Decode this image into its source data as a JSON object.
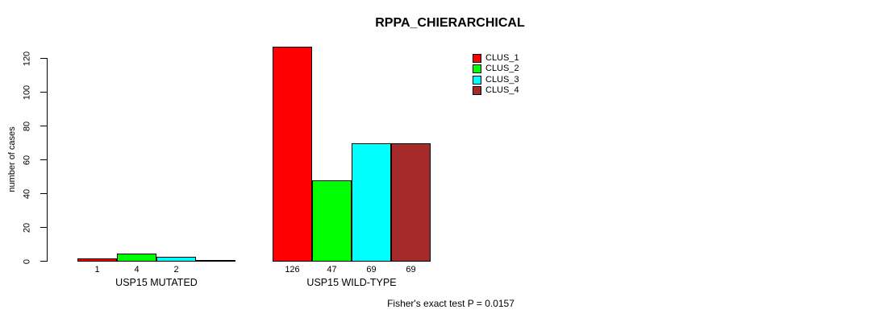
{
  "chart_data": {
    "type": "bar",
    "title": "RPPA_CHIERARCHICAL",
    "ylabel": "number of cases",
    "xlabel": "",
    "ylim": [
      0,
      120
    ],
    "yticks": [
      0,
      20,
      40,
      60,
      80,
      100,
      120
    ],
    "grid": false,
    "legend_position": "top-right",
    "categories": [
      "USP15 MUTATED",
      "USP15 WILD-TYPE"
    ],
    "series": [
      {
        "name": "CLUS_1",
        "color": "#FF0000",
        "values": [
          1,
          126
        ]
      },
      {
        "name": "CLUS_2",
        "color": "#00FF00",
        "values": [
          4,
          47
        ]
      },
      {
        "name": "CLUS_3",
        "color": "#00FFFF",
        "values": [
          2,
          69
        ]
      },
      {
        "name": "CLUS_4",
        "color": "#A52A2A",
        "values": [
          0,
          69
        ]
      }
    ],
    "bar_labels": [
      [
        "1",
        "4",
        "2",
        ""
      ],
      [
        "126",
        "47",
        "69",
        "69"
      ]
    ],
    "annotation": "Fisher's exact test P = 0.0157"
  },
  "colors": {
    "background": "#FFFFFF",
    "axis": "#000000",
    "text": "#000000"
  }
}
